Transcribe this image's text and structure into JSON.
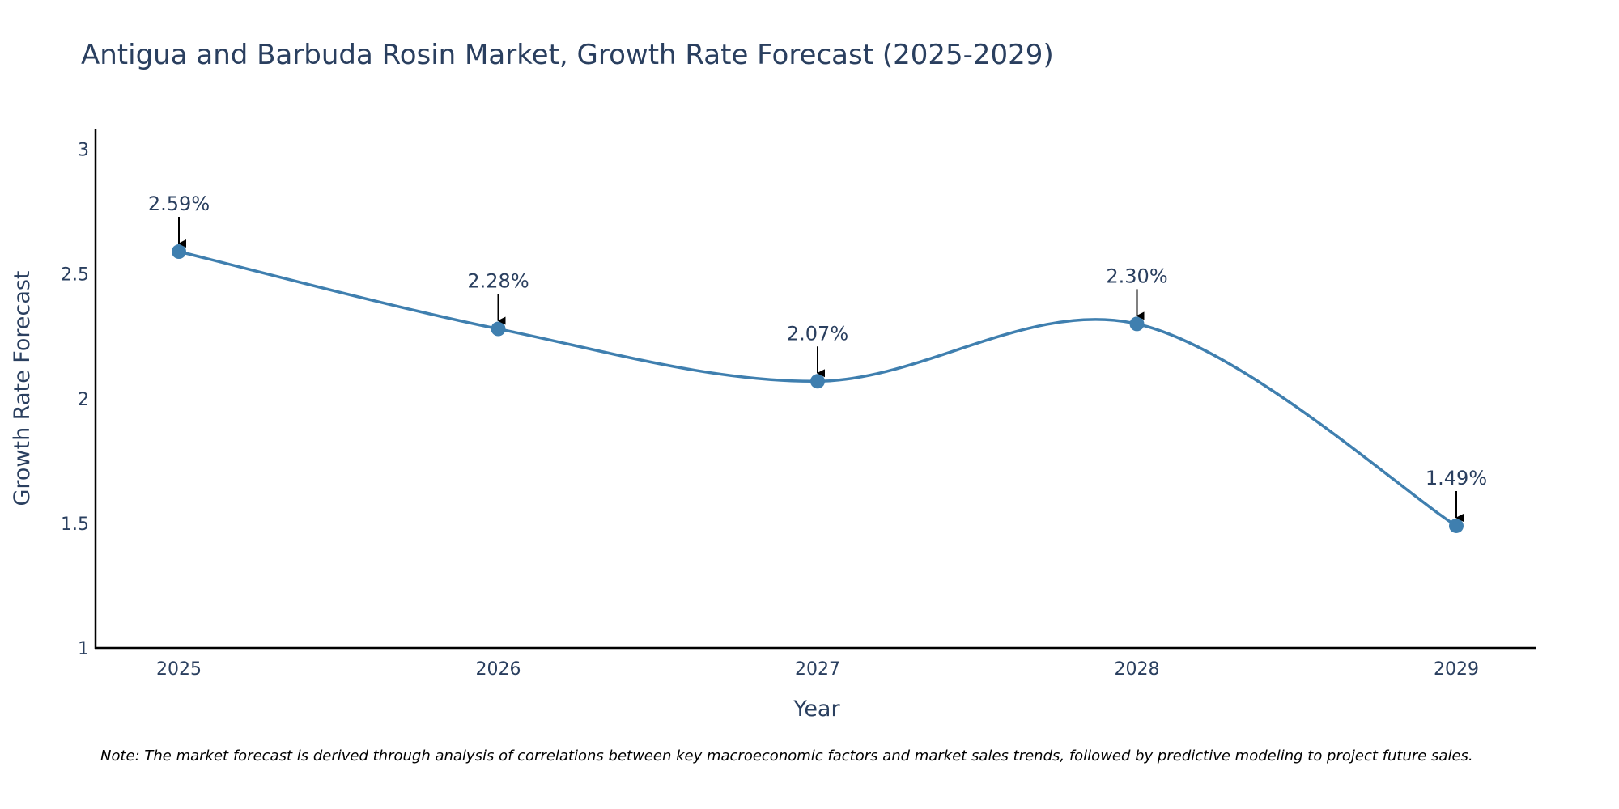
{
  "chart_data": {
    "type": "line",
    "title": "Antigua and Barbuda Rosin Market, Growth Rate Forecast (2025-2029)",
    "xlabel": "Year",
    "ylabel": "Growth Rate Forecast",
    "categories": [
      "2025",
      "2026",
      "2027",
      "2028",
      "2029"
    ],
    "values": [
      2.59,
      2.28,
      2.07,
      2.3,
      1.49
    ],
    "data_labels": [
      "2.59%",
      "2.28%",
      "2.07%",
      "2.30%",
      "1.49%"
    ],
    "ylim": [
      1,
      3.08
    ],
    "yticks": [
      1,
      1.5,
      2,
      2.5,
      3
    ],
    "ytick_labels": [
      "1",
      "1.5",
      "2",
      "2.5",
      "3"
    ],
    "line_shape": "spline",
    "grid": false,
    "note": "Note: The market forecast is derived through analysis of correlations between key macroeconomic factors and market sales trends, followed by predictive modeling to project future sales."
  },
  "colors": {
    "line": "#3f7faf",
    "marker": "#3f7faf",
    "axis": "#000000",
    "text": "#2a3f5f",
    "arrow": "#000000"
  }
}
